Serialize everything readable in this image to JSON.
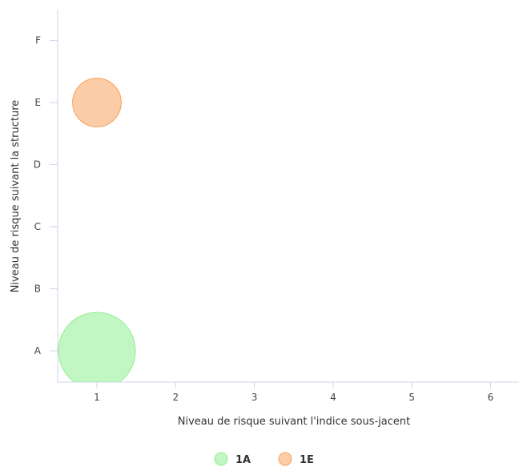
{
  "chart_data": {
    "type": "scatter",
    "subtype": "bubble",
    "xlabel": "Niveau de risque suivant l'indice sous-jacent",
    "ylabel": "Niveau de risque suivant la structure",
    "x_categories": [
      "1",
      "2",
      "3",
      "4",
      "5",
      "6"
    ],
    "y_categories": [
      "A",
      "B",
      "C",
      "D",
      "E",
      "F"
    ],
    "grid": false,
    "legend_position": "bottom-center",
    "series": [
      {
        "name": "1A",
        "x": "1",
        "y": "A",
        "relative_size": 1.0,
        "color": "#90ee90"
      },
      {
        "name": "1E",
        "x": "1",
        "y": "E",
        "relative_size": 0.4,
        "color": "#f7a35c"
      }
    ]
  }
}
